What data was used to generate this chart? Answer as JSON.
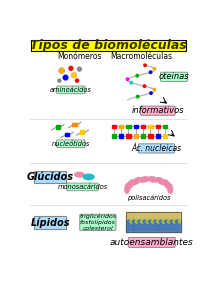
{
  "title": "Tipos de biomoléculas",
  "title_bg": "#ffff00",
  "title_color": "#333300",
  "title_fontsize": 9,
  "bg_color": "#ffffff",
  "monomer_label": "Monómeros",
  "macro_label": "Macromoléculas",
  "aminoacidos_bg": "#aaffcc",
  "nucleotidos_bg": "#aaffcc",
  "oteinas_bg": "#aaffcc",
  "informativos_bg": "#ffaacc",
  "ac_nucleicas_bg": "#aaddff",
  "glucidos_bg": "#aaddff",
  "lipidos_bg": "#aaddff",
  "monosacaridos_bg": "#aaffcc",
  "autoensamblantes_bg": "#ffaacc",
  "trigliceridos_bg": "#aaffcc"
}
